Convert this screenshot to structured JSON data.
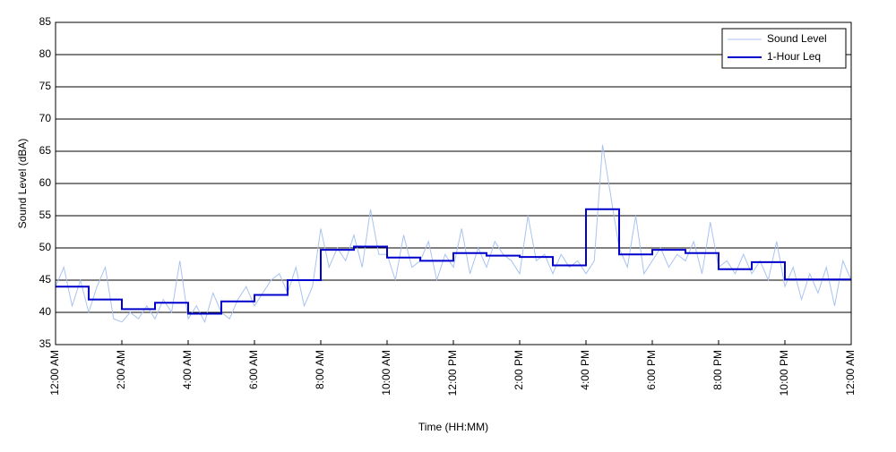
{
  "chart_data": {
    "type": "line",
    "xlabel": "Time (HH:MM)",
    "ylabel": "Sound Level (dBA)",
    "xlim": [
      0,
      24
    ],
    "ylim": [
      35,
      85
    ],
    "yticks": [
      35,
      40,
      45,
      50,
      55,
      60,
      65,
      70,
      75,
      80,
      85
    ],
    "xticks": [
      {
        "value": 0,
        "label": "12:00 AM"
      },
      {
        "value": 2,
        "label": "2:00 AM"
      },
      {
        "value": 4,
        "label": "4:00 AM"
      },
      {
        "value": 6,
        "label": "6:00 AM"
      },
      {
        "value": 8,
        "label": "8:00 AM"
      },
      {
        "value": 10,
        "label": "10:00 AM"
      },
      {
        "value": 12,
        "label": "12:00 PM"
      },
      {
        "value": 14,
        "label": "2:00 PM"
      },
      {
        "value": 16,
        "label": "4:00 PM"
      },
      {
        "value": 18,
        "label": "6:00 PM"
      },
      {
        "value": 20,
        "label": "8:00 PM"
      },
      {
        "value": 22,
        "label": "10:00 PM"
      },
      {
        "value": 24,
        "label": "12:00 AM"
      }
    ],
    "grid": true,
    "legend": "top-right",
    "series": [
      {
        "name": "Sound Level",
        "color": "#a9c3f0",
        "x": [
          0,
          0.25,
          0.5,
          0.75,
          1,
          1.25,
          1.5,
          1.75,
          2,
          2.25,
          2.5,
          2.75,
          3,
          3.25,
          3.5,
          3.75,
          4,
          4.25,
          4.5,
          4.75,
          5,
          5.25,
          5.5,
          5.75,
          6,
          6.25,
          6.5,
          6.75,
          7,
          7.25,
          7.5,
          7.75,
          8,
          8.25,
          8.5,
          8.75,
          9,
          9.25,
          9.5,
          9.75,
          10,
          10.25,
          10.5,
          10.75,
          11,
          11.25,
          11.5,
          11.75,
          12,
          12.25,
          12.5,
          12.75,
          13,
          13.25,
          13.5,
          13.75,
          14,
          14.25,
          14.5,
          14.75,
          15,
          15.25,
          15.5,
          15.75,
          16,
          16.25,
          16.5,
          16.75,
          17,
          17.25,
          17.5,
          17.75,
          18,
          18.25,
          18.5,
          18.75,
          19,
          19.25,
          19.5,
          19.75,
          20,
          20.25,
          20.5,
          20.75,
          21,
          21.25,
          21.5,
          21.75,
          22,
          22.25,
          22.5,
          22.75,
          23,
          23.25,
          23.5,
          23.75,
          24
        ],
        "values": [
          44,
          47,
          41,
          45,
          40,
          44,
          47,
          39,
          38.5,
          40,
          39,
          41,
          39,
          42,
          40,
          48,
          39,
          41,
          38.5,
          43,
          40,
          39,
          42,
          44,
          41,
          43,
          45,
          46,
          43,
          47,
          41,
          44,
          53,
          47,
          50,
          48,
          52,
          47,
          56,
          49,
          49,
          45,
          52,
          47,
          48,
          51,
          45,
          49,
          47,
          53,
          46,
          50,
          47,
          51,
          49,
          48,
          46,
          55,
          48,
          49,
          46,
          49,
          47,
          48,
          46,
          48,
          66,
          58,
          50,
          47,
          55,
          46,
          48,
          50,
          47,
          49,
          48,
          51,
          46,
          54,
          47,
          48,
          46,
          49,
          46,
          48,
          45,
          51,
          44,
          47,
          42,
          46,
          43,
          47,
          41,
          48,
          45
        ]
      },
      {
        "name": "1-Hour Leq",
        "color": "#0000cc",
        "step": true,
        "x": [
          0,
          1,
          2,
          3,
          4,
          5,
          6,
          7,
          8,
          9,
          10,
          11,
          12,
          13,
          14,
          15,
          16,
          17,
          18,
          19,
          20,
          21,
          22,
          23
        ],
        "values": [
          44,
          42,
          40.5,
          41.5,
          39.8,
          41.7,
          42.7,
          45,
          49.7,
          50.2,
          48.5,
          48,
          49.2,
          48.8,
          48.6,
          47.3,
          56,
          49,
          49.7,
          49.2,
          46.7,
          47.8,
          45.1,
          45.1
        ]
      }
    ]
  }
}
